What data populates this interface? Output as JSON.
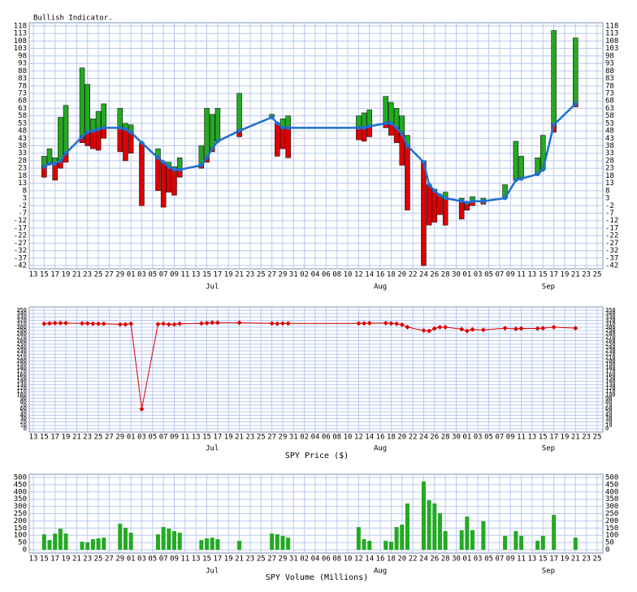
{
  "x_axis": {
    "ticks": [
      {
        "value": 0,
        "label": "13"
      },
      {
        "value": 2,
        "label": "15"
      },
      {
        "value": 4,
        "label": "17"
      },
      {
        "value": 6,
        "label": "19"
      },
      {
        "value": 8,
        "label": "21"
      },
      {
        "value": 10,
        "label": "23"
      },
      {
        "value": 12,
        "label": "25"
      },
      {
        "value": 14,
        "label": "27"
      },
      {
        "value": 16,
        "label": "29"
      },
      {
        "value": 18,
        "label": "01"
      },
      {
        "value": 20,
        "label": "03"
      },
      {
        "value": 22,
        "label": "05"
      },
      {
        "value": 24,
        "label": "07"
      },
      {
        "value": 26,
        "label": "09"
      },
      {
        "value": 28,
        "label": "11"
      },
      {
        "value": 30,
        "label": "13"
      },
      {
        "value": 32,
        "label": "15"
      },
      {
        "value": 34,
        "label": "17"
      },
      {
        "value": 36,
        "label": "19"
      },
      {
        "value": 38,
        "label": "21"
      },
      {
        "value": 40,
        "label": "23"
      },
      {
        "value": 42,
        "label": "25"
      },
      {
        "value": 44,
        "label": "27"
      },
      {
        "value": 46,
        "label": "29"
      },
      {
        "value": 48,
        "label": "31"
      },
      {
        "value": 50,
        "label": "02"
      },
      {
        "value": 52,
        "label": "04"
      },
      {
        "value": 54,
        "label": "06"
      },
      {
        "value": 56,
        "label": "08"
      },
      {
        "value": 58,
        "label": "10"
      },
      {
        "value": 60,
        "label": "12"
      },
      {
        "value": 62,
        "label": "14"
      },
      {
        "value": 64,
        "label": "16"
      },
      {
        "value": 66,
        "label": "18"
      },
      {
        "value": 68,
        "label": "20"
      },
      {
        "value": 70,
        "label": "22"
      },
      {
        "value": 72,
        "label": "24"
      },
      {
        "value": 74,
        "label": "26"
      },
      {
        "value": 76,
        "label": "28"
      },
      {
        "value": 78,
        "label": "30"
      },
      {
        "value": 80,
        "label": "01"
      },
      {
        "value": 82,
        "label": "03"
      },
      {
        "value": 84,
        "label": "05"
      },
      {
        "value": 86,
        "label": "07"
      },
      {
        "value": 88,
        "label": "09"
      },
      {
        "value": 90,
        "label": "11"
      },
      {
        "value": 92,
        "label": "13"
      },
      {
        "value": 94,
        "label": "15"
      },
      {
        "value": 96,
        "label": "17"
      },
      {
        "value": 98,
        "label": "19"
      },
      {
        "value": 100,
        "label": "21"
      },
      {
        "value": 102,
        "label": "23"
      },
      {
        "value": 104,
        "label": "25"
      }
    ],
    "months": [
      {
        "value": 33,
        "label": "Jul"
      },
      {
        "value": 64,
        "label": "Aug"
      },
      {
        "value": 95,
        "label": "Sep"
      }
    ],
    "xlim": [
      0,
      104
    ],
    "grid": true
  },
  "chart_data": [
    {
      "type": "indicator",
      "title": "Bullish Indicator.",
      "x": [
        2,
        3,
        4,
        5,
        6,
        9,
        10,
        11,
        12,
        13,
        16,
        17,
        18,
        20,
        23,
        24,
        25,
        26,
        27,
        31,
        32,
        33,
        34,
        38,
        44,
        45,
        46,
        47,
        60,
        61,
        62,
        65,
        66,
        67,
        68,
        69,
        72,
        73,
        74,
        75,
        76,
        79,
        80,
        81,
        83,
        87,
        89,
        90,
        93,
        94,
        96,
        100
      ],
      "highs": [
        31,
        36,
        30,
        57,
        65,
        90,
        79,
        56,
        61,
        66,
        63,
        53,
        52,
        null,
        36,
        null,
        27,
        24,
        30,
        38,
        63,
        59,
        63,
        73,
        59,
        null,
        56,
        58,
        58,
        60,
        62,
        71,
        67,
        63,
        58,
        45,
        28,
        null,
        9,
        null,
        7,
        3,
        null,
        4,
        3,
        12,
        41,
        31,
        30,
        45,
        115,
        110
      ],
      "lows": [
        17,
        null,
        15,
        23,
        27,
        40,
        38,
        36,
        35,
        43,
        34,
        28,
        33,
        -2,
        8,
        -3,
        7,
        5,
        17,
        23,
        27,
        34,
        null,
        44,
        null,
        31,
        36,
        30,
        42,
        41,
        44,
        50,
        45,
        40,
        25,
        -5,
        -42,
        -15,
        -13,
        -8,
        -15,
        -11,
        -5,
        -2,
        -1,
        null,
        null,
        null,
        null,
        22,
        47,
        64
      ],
      "ma": [
        24,
        26,
        26,
        28,
        33,
        44,
        47,
        48,
        49,
        50,
        50,
        49,
        47,
        40,
        30,
        27,
        24,
        22,
        22,
        25,
        30,
        36,
        41,
        48,
        57,
        53,
        50,
        50,
        50,
        50,
        51,
        53,
        53,
        50,
        46,
        38,
        27,
        12,
        8,
        5,
        3,
        1,
        0,
        1,
        1,
        3,
        15,
        16,
        19,
        22,
        52,
        66
      ],
      "up_color": "#22aa22",
      "down_color": "#dd0000",
      "line_color": "#1f6fd0",
      "ylim": [
        -42,
        118
      ],
      "yticks": [
        -42,
        -37,
        -32,
        -27,
        -22,
        -17,
        -12,
        -7,
        -2,
        3,
        8,
        13,
        18,
        23,
        28,
        33,
        38,
        43,
        48,
        53,
        58,
        63,
        68,
        73,
        78,
        83,
        88,
        93,
        98,
        103,
        108,
        113,
        118
      ]
    },
    {
      "type": "line",
      "y_label": "SPY Price ($)",
      "x": [
        2,
        3,
        4,
        5,
        6,
        9,
        10,
        11,
        12,
        13,
        16,
        17,
        18,
        20,
        23,
        24,
        25,
        26,
        27,
        31,
        32,
        33,
        34,
        38,
        44,
        45,
        46,
        47,
        60,
        61,
        62,
        65,
        66,
        67,
        68,
        69,
        72,
        73,
        74,
        75,
        76,
        79,
        80,
        81,
        83,
        87,
        89,
        90,
        93,
        94,
        96,
        100
      ],
      "values": [
        310,
        311,
        312,
        312,
        312,
        311,
        311,
        310,
        310,
        310,
        308,
        308,
        310,
        58,
        309,
        310,
        308,
        308,
        310,
        311,
        312,
        313,
        313,
        313,
        311,
        310,
        311,
        311,
        311,
        311,
        312,
        312,
        311,
        310,
        307,
        300,
        290,
        289,
        296,
        300,
        300,
        294,
        289,
        293,
        292,
        297,
        295,
        296,
        296,
        297,
        300,
        297
      ],
      "color": "#dd0000",
      "ylim": [
        0,
        350
      ],
      "yticks": [
        0,
        10,
        20,
        30,
        40,
        50,
        60,
        70,
        80,
        90,
        100,
        110,
        120,
        130,
        140,
        150,
        160,
        170,
        180,
        190,
        200,
        210,
        220,
        230,
        240,
        250,
        260,
        270,
        280,
        290,
        300,
        310,
        320,
        330,
        340,
        350
      ]
    },
    {
      "type": "bar",
      "y_label": "SPY Volume (Millions)",
      "x": [
        2,
        3,
        4,
        5,
        6,
        9,
        10,
        11,
        12,
        13,
        16,
        17,
        18,
        23,
        24,
        25,
        26,
        27,
        31,
        32,
        33,
        34,
        38,
        44,
        45,
        46,
        47,
        60,
        61,
        62,
        65,
        66,
        67,
        68,
        69,
        72,
        73,
        74,
        75,
        76,
        79,
        80,
        81,
        83,
        87,
        89,
        90,
        93,
        94,
        96,
        100
      ],
      "values": [
        107,
        67,
        112,
        146,
        112,
        56,
        51,
        73,
        79,
        84,
        180,
        152,
        118,
        107,
        157,
        146,
        129,
        118,
        67,
        79,
        84,
        73,
        62,
        112,
        107,
        96,
        84,
        157,
        73,
        62,
        62,
        56,
        157,
        174,
        320,
        472,
        343,
        320,
        253,
        129,
        135,
        230,
        135,
        197,
        96,
        129,
        96,
        62,
        96,
        242,
        84
      ],
      "color": "#22aa22",
      "ylim": [
        0,
        500
      ],
      "yticks": [
        0,
        50,
        100,
        150,
        200,
        250,
        300,
        350,
        400,
        450,
        500
      ]
    }
  ]
}
